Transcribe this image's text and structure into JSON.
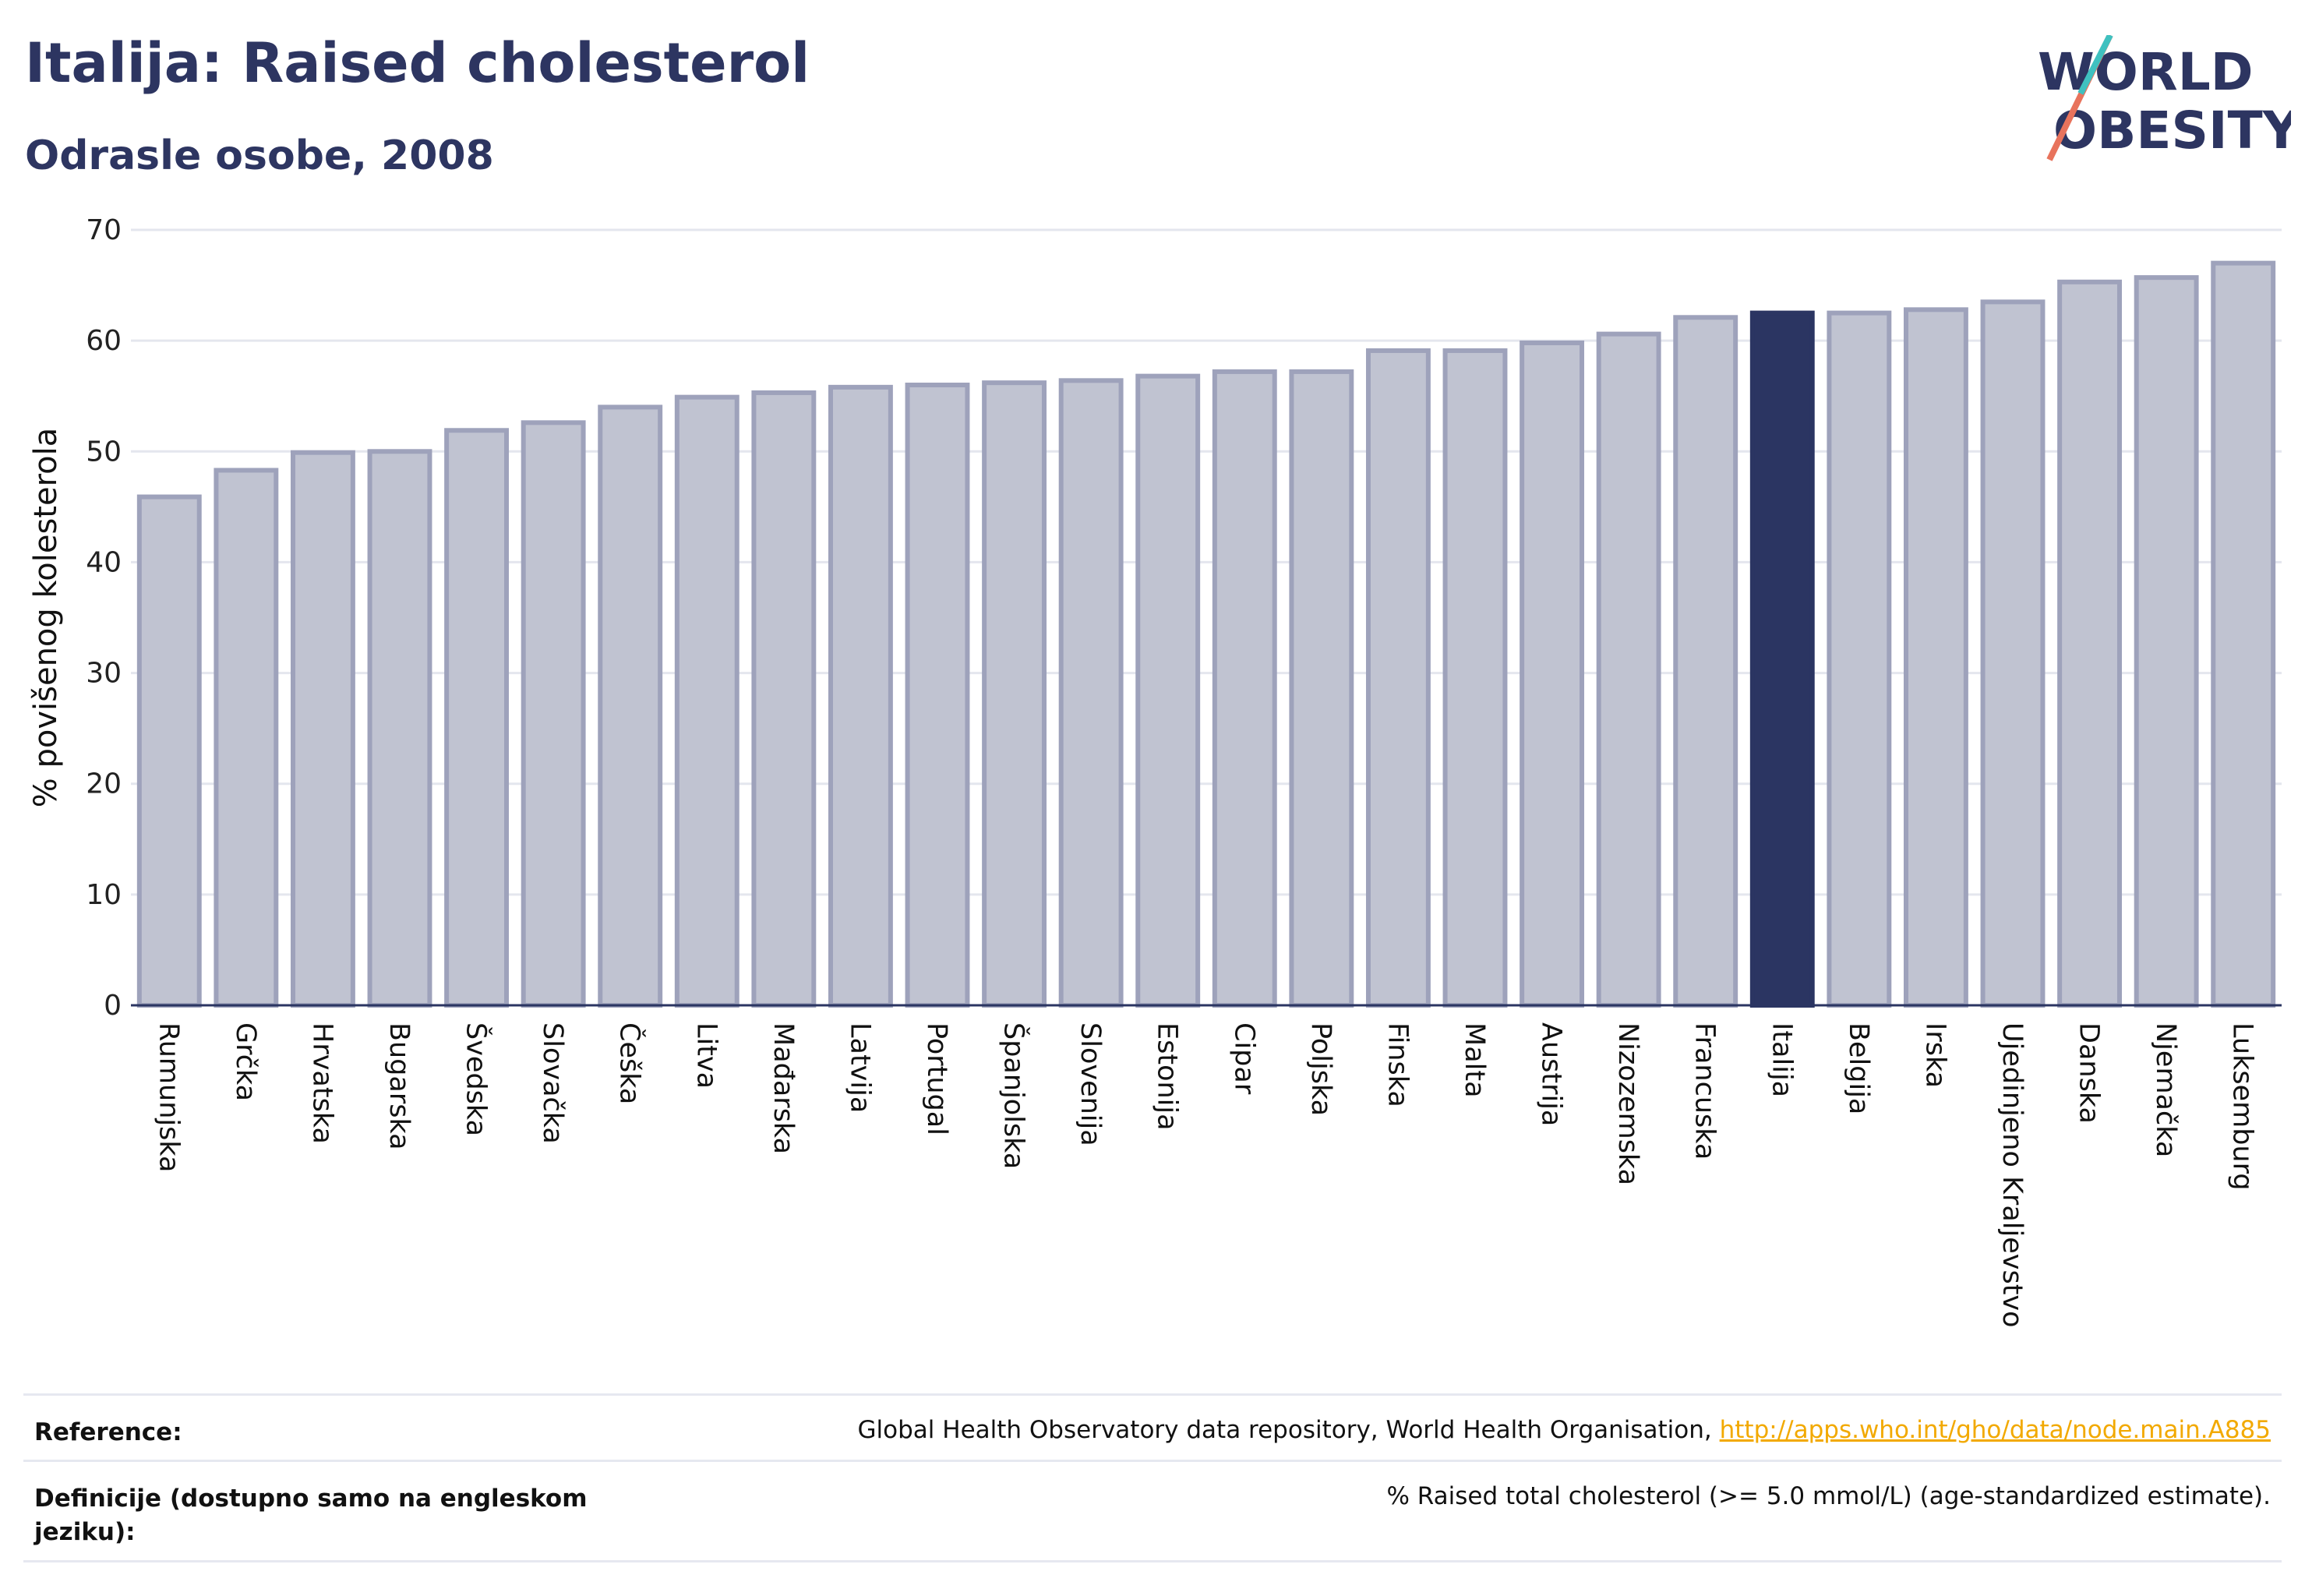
{
  "header": {
    "title": "Italija: Raised cholesterol",
    "subtitle": "Odrasle osobe, 2008"
  },
  "logo": {
    "line1": "WORLD",
    "line2": "OBESITY"
  },
  "chart_data": {
    "type": "bar",
    "ylabel": "% povišenog kolesterola",
    "xlabel": "",
    "ylim": [
      0,
      70
    ],
    "yticks": [
      0,
      10,
      20,
      30,
      40,
      50,
      60,
      70
    ],
    "grid": true,
    "highlight": "Italija",
    "colors": {
      "bar": "#c0c3d1",
      "bar_edge": "#9ea2bb",
      "highlight": "#2b3562",
      "grid": "#e4e6ee",
      "axis": "#2b3562"
    },
    "categories": [
      "Rumunjska",
      "Grčka",
      "Hrvatska",
      "Bugarska",
      "Švedska",
      "Slovačka",
      "Češka",
      "Litva",
      "Mađarska",
      "Latvija",
      "Portugal",
      "Španjolska",
      "Slovenija",
      "Estonija",
      "Cipar",
      "Poljska",
      "Finska",
      "Malta",
      "Austrija",
      "Nizozemska",
      "Francuska",
      "Italija",
      "Belgija",
      "Irska",
      "Ujedinjeno Kraljevstvo",
      "Danska",
      "Njemačka",
      "Luksemburg"
    ],
    "values": [
      45.9,
      48.3,
      49.9,
      50.0,
      51.9,
      52.6,
      54.0,
      54.9,
      55.3,
      55.8,
      56.0,
      56.2,
      56.4,
      56.8,
      57.2,
      57.2,
      59.1,
      59.1,
      59.8,
      60.6,
      62.1,
      62.5,
      62.5,
      62.8,
      63.5,
      65.3,
      65.7,
      67.0
    ]
  },
  "footer": {
    "reference_label": "Reference:",
    "reference_text": "Global Health Observatory data repository, World Health Organisation, ",
    "reference_link": "http://apps.who.int/gho/data/node.main.A885",
    "definition_label": "Definicije (dostupno samo na engleskom jeziku):",
    "definition_text": "% Raised total cholesterol (>= 5.0 mmol/L) (age-standardized estimate)."
  }
}
